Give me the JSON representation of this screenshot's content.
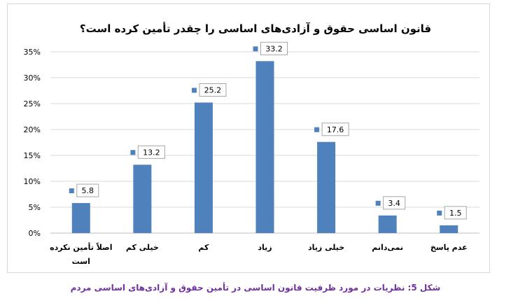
{
  "chart_data": {
    "type": "bar",
    "title": "قانون اساسی حقوق و آزادی‌های اساسی را چقدر تأمین کرده است؟",
    "categories": [
      [
        "اصلاً تأمین نکرده",
        "است"
      ],
      [
        "خیلی کم"
      ],
      [
        "کم"
      ],
      [
        "زیاد"
      ],
      [
        "خیلی زیاد"
      ],
      [
        "نمی‌دانم"
      ],
      [
        "عدم پاسخ"
      ]
    ],
    "values": [
      5.8,
      13.2,
      25.2,
      33.2,
      17.6,
      3.4,
      1.5
    ],
    "data_labels": [
      "5.8",
      "13.2",
      "25.2",
      "33.2",
      "17.6",
      "3.4",
      "1.5"
    ],
    "yticks": [
      0,
      5,
      10,
      15,
      20,
      25,
      30,
      35
    ],
    "ytick_labels": [
      "0%",
      "5%",
      "10%",
      "15%",
      "20%",
      "25%",
      "30%",
      "35%"
    ],
    "ylim": [
      0,
      35
    ],
    "grid": true,
    "bar_color": "#4f81bd",
    "marker_color": "#4f81bd",
    "label_border_color": "#a6a6a6",
    "xlabel": "",
    "ylabel": ""
  },
  "caption": {
    "prefix": "شکل 5:",
    "text": "نظریات در مورد ظرفیت قانون اساسی در تأمین حقوق و آزادی‌های اساسی مردم"
  }
}
